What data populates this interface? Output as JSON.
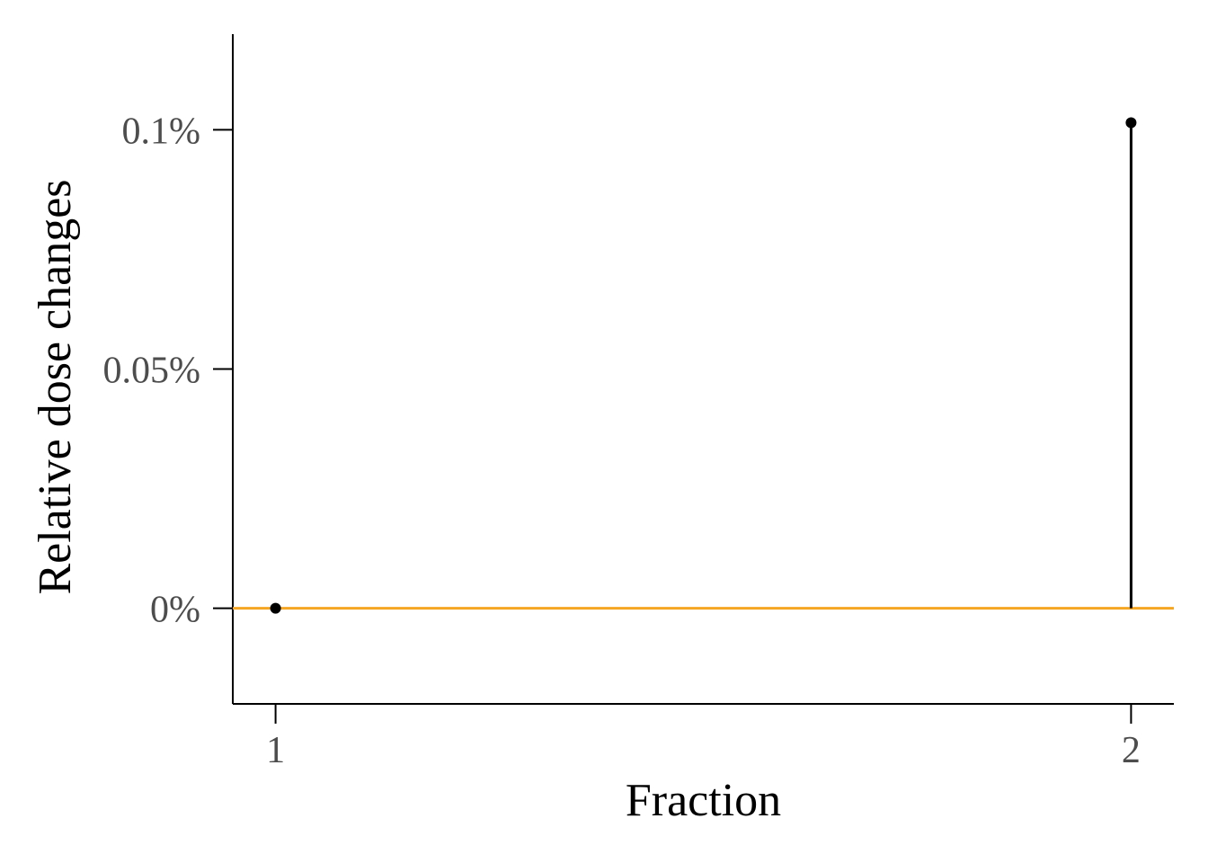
{
  "chart_data": {
    "type": "scatter",
    "style": "lollipop",
    "xlabel": "Fraction",
    "ylabel": "Relative dose changes",
    "x_ticks": [
      {
        "value": 1,
        "label": "1"
      },
      {
        "value": 2,
        "label": "2"
      }
    ],
    "y_ticks": [
      {
        "value": 0,
        "label": "0%"
      },
      {
        "value": 0.05,
        "label": "0.05%"
      },
      {
        "value": 0.1,
        "label": "0.1%"
      }
    ],
    "xlim": [
      0.95,
      2.05
    ],
    "ylim": [
      -0.02,
      0.12
    ],
    "series": [
      {
        "x": [
          1,
          2
        ],
        "y": [
          0,
          0.1015
        ]
      }
    ],
    "reference_line": {
      "y": 0,
      "color": "#f5a623"
    },
    "grid": false,
    "colors": {
      "points": "#000000",
      "stems": "#000000",
      "axis": "#000000",
      "tick_text": "#4d4d4d"
    }
  }
}
